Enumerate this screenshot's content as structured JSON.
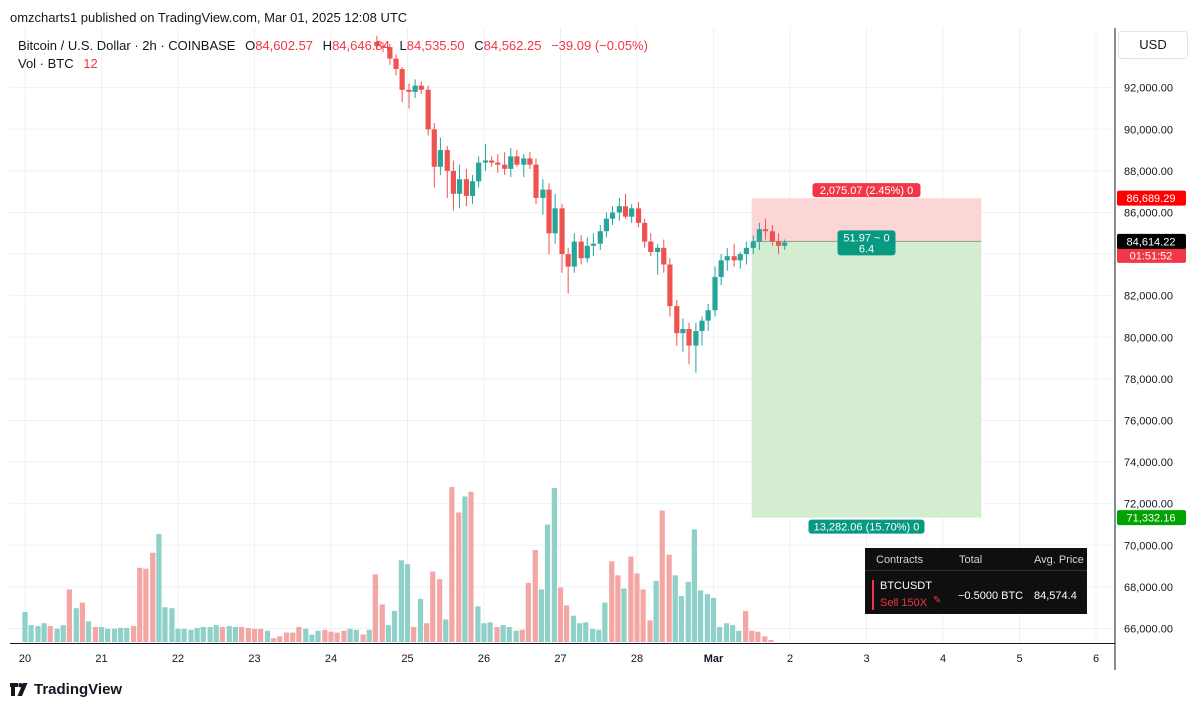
{
  "header": {
    "published": "omzcharts1 published on TradingView.com, Mar 01, 2025 12:08 UTC"
  },
  "legend": {
    "symbol": "Bitcoin / U.S. Dollar · 2h · COINBASE",
    "o_label": "O",
    "o_value": "84,602.57",
    "h_label": "H",
    "h_value": "84,646.84",
    "l_label": "L",
    "l_value": "84,535.50",
    "c_label": "C",
    "c_value": "84,562.25",
    "change": "−39.09 (−0.05%)",
    "vol_label": "Vol · BTC",
    "vol_value": "12"
  },
  "currency_button": "USD",
  "price_axis_labels": [
    "92,000.00",
    "90,000.00",
    "88,000.00",
    "86,000.00",
    "84,000.00",
    "82,000.00",
    "80,000.00",
    "78,000.00",
    "76,000.00",
    "74,000.00",
    "72,000.00",
    "70,000.00",
    "68,000.00",
    "66,000.00"
  ],
  "price_axis_values": [
    92000,
    90000,
    88000,
    86000,
    84000,
    82000,
    80000,
    78000,
    76000,
    74000,
    72000,
    70000,
    68000,
    66000
  ],
  "time_axis_labels": [
    "20",
    "21",
    "22",
    "23",
    "24",
    "25",
    "26",
    "27",
    "28",
    "Mar",
    "2",
    "3",
    "4",
    "5",
    "6"
  ],
  "price_markers": {
    "stop": {
      "label": "86,689.29",
      "value": 86689.29,
      "color": "#ff0000"
    },
    "current": {
      "label": "84,614.22",
      "value": 84614.22,
      "color": "#000000"
    },
    "last": {
      "label": "84,562.25",
      "countdown": "01:51:52",
      "value": 84562.25,
      "color": "#f23645"
    },
    "target": {
      "label": "71,332.16",
      "value": 71332.16,
      "color": "#00a300"
    }
  },
  "position_tool": {
    "stop_box_label": "2,075.07 (2.45%) 0",
    "center_label_line1": "51.97 ~ 0",
    "center_label_line2": "6.4",
    "target_box_label": "13,282.06 (15.70%) 0",
    "entry": 84614.22,
    "stop": 86689.29,
    "target": 71332.16,
    "start_time": 9.5,
    "end_time": 12.5,
    "stop_color": "#fcd6d6",
    "target_color": "#d4edd0"
  },
  "position_panel": {
    "col_contracts": "Contracts",
    "col_total": "Total",
    "col_avg_price": "Avg. Price",
    "symbol": "BTCUSDT",
    "side": "Sell 150X",
    "total": "−0.5000 BTC",
    "avg_price": "84,574.4"
  },
  "branding": "TradingView",
  "colors": {
    "up": "#26a69a",
    "down": "#ef5350",
    "up_vol": "#8fd1c9",
    "down_vol": "#f4a6a4",
    "grid": "#eef0f3"
  },
  "chart_data": {
    "type": "candlestick",
    "title": "Bitcoin / U.S. Dollar · 2h · COINBASE",
    "x_unit": "days (0 = Feb 20)",
    "ylim": [
      65000,
      94000
    ],
    "grid": true,
    "candles": [
      {
        "t": 4.6,
        "o": 94200,
        "h": 94500,
        "l": 93800,
        "c": 94000
      },
      {
        "t": 4.68,
        "o": 94000,
        "h": 94200,
        "l": 93700,
        "c": 93950
      },
      {
        "t": 4.77,
        "o": 93950,
        "h": 94100,
        "l": 93100,
        "c": 93400
      },
      {
        "t": 4.85,
        "o": 93400,
        "h": 93600,
        "l": 92600,
        "c": 92900
      },
      {
        "t": 4.93,
        "o": 92900,
        "h": 93000,
        "l": 91300,
        "c": 91900
      },
      {
        "t": 5.02,
        "o": 91900,
        "h": 92200,
        "l": 91000,
        "c": 91800
      },
      {
        "t": 5.1,
        "o": 91800,
        "h": 92400,
        "l": 91500,
        "c": 92100
      },
      {
        "t": 5.18,
        "o": 92100,
        "h": 92300,
        "l": 91700,
        "c": 91900
      },
      {
        "t": 5.27,
        "o": 91900,
        "h": 92100,
        "l": 89700,
        "c": 90000
      },
      {
        "t": 5.35,
        "o": 90000,
        "h": 90300,
        "l": 87200,
        "c": 88200
      },
      {
        "t": 5.43,
        "o": 88200,
        "h": 89600,
        "l": 87800,
        "c": 89000
      },
      {
        "t": 5.52,
        "o": 89000,
        "h": 89200,
        "l": 86700,
        "c": 88000
      },
      {
        "t": 5.6,
        "o": 88000,
        "h": 88500,
        "l": 86100,
        "c": 86900
      },
      {
        "t": 5.68,
        "o": 86900,
        "h": 88300,
        "l": 86200,
        "c": 87600
      },
      {
        "t": 5.77,
        "o": 87600,
        "h": 88100,
        "l": 86300,
        "c": 86800
      },
      {
        "t": 5.85,
        "o": 86800,
        "h": 87800,
        "l": 86400,
        "c": 87500
      },
      {
        "t": 5.93,
        "o": 87500,
        "h": 88700,
        "l": 87200,
        "c": 88400
      },
      {
        "t": 6.02,
        "o": 88400,
        "h": 89300,
        "l": 88000,
        "c": 88500
      },
      {
        "t": 6.1,
        "o": 88500,
        "h": 88700,
        "l": 88200,
        "c": 88400
      },
      {
        "t": 6.18,
        "o": 88400,
        "h": 88800,
        "l": 87900,
        "c": 88300
      },
      {
        "t": 6.27,
        "o": 88300,
        "h": 88900,
        "l": 87800,
        "c": 88100
      },
      {
        "t": 6.35,
        "o": 88100,
        "h": 89100,
        "l": 87700,
        "c": 88700
      },
      {
        "t": 6.43,
        "o": 88700,
        "h": 89000,
        "l": 88200,
        "c": 88300
      },
      {
        "t": 6.52,
        "o": 88300,
        "h": 88800,
        "l": 87700,
        "c": 88600
      },
      {
        "t": 6.6,
        "o": 88600,
        "h": 88900,
        "l": 88100,
        "c": 88300
      },
      {
        "t": 6.68,
        "o": 88300,
        "h": 88600,
        "l": 86400,
        "c": 86700
      },
      {
        "t": 6.77,
        "o": 86700,
        "h": 87600,
        "l": 85900,
        "c": 87100
      },
      {
        "t": 6.85,
        "o": 87100,
        "h": 87400,
        "l": 84000,
        "c": 85000
      },
      {
        "t": 6.93,
        "o": 85000,
        "h": 86900,
        "l": 84500,
        "c": 86200
      },
      {
        "t": 7.02,
        "o": 86200,
        "h": 86400,
        "l": 83100,
        "c": 84000
      },
      {
        "t": 7.1,
        "o": 84000,
        "h": 84300,
        "l": 82100,
        "c": 83400
      },
      {
        "t": 7.18,
        "o": 83400,
        "h": 85000,
        "l": 83100,
        "c": 84600
      },
      {
        "t": 7.27,
        "o": 84600,
        "h": 84900,
        "l": 83500,
        "c": 83800
      },
      {
        "t": 7.35,
        "o": 83800,
        "h": 84800,
        "l": 83600,
        "c": 84400
      },
      {
        "t": 7.43,
        "o": 84400,
        "h": 85000,
        "l": 83900,
        "c": 84500
      },
      {
        "t": 7.52,
        "o": 84500,
        "h": 85400,
        "l": 84200,
        "c": 85100
      },
      {
        "t": 7.6,
        "o": 85100,
        "h": 86000,
        "l": 84800,
        "c": 85700
      },
      {
        "t": 7.68,
        "o": 85700,
        "h": 86300,
        "l": 85400,
        "c": 86000
      },
      {
        "t": 7.77,
        "o": 86000,
        "h": 86700,
        "l": 85600,
        "c": 86300
      },
      {
        "t": 7.85,
        "o": 86300,
        "h": 86900,
        "l": 85700,
        "c": 85800
      },
      {
        "t": 7.93,
        "o": 85800,
        "h": 86400,
        "l": 85500,
        "c": 86200
      },
      {
        "t": 8.02,
        "o": 86200,
        "h": 86500,
        "l": 85300,
        "c": 85500
      },
      {
        "t": 8.1,
        "o": 85500,
        "h": 85700,
        "l": 84300,
        "c": 84600
      },
      {
        "t": 8.18,
        "o": 84600,
        "h": 85000,
        "l": 83900,
        "c": 84100
      },
      {
        "t": 8.27,
        "o": 84100,
        "h": 84500,
        "l": 83000,
        "c": 84300
      },
      {
        "t": 8.35,
        "o": 84300,
        "h": 84700,
        "l": 83100,
        "c": 83500
      },
      {
        "t": 8.43,
        "o": 83500,
        "h": 83800,
        "l": 81000,
        "c": 81500
      },
      {
        "t": 8.52,
        "o": 81500,
        "h": 81800,
        "l": 79600,
        "c": 80200
      },
      {
        "t": 8.6,
        "o": 80200,
        "h": 80900,
        "l": 79300,
        "c": 80400
      },
      {
        "t": 8.68,
        "o": 80400,
        "h": 80700,
        "l": 78700,
        "c": 79600
      },
      {
        "t": 8.77,
        "o": 79600,
        "h": 80700,
        "l": 78300,
        "c": 80300
      },
      {
        "t": 8.85,
        "o": 80300,
        "h": 81000,
        "l": 79600,
        "c": 80800
      },
      {
        "t": 8.93,
        "o": 80800,
        "h": 81600,
        "l": 80300,
        "c": 81300
      },
      {
        "t": 9.02,
        "o": 81300,
        "h": 83400,
        "l": 81000,
        "c": 82900
      },
      {
        "t": 9.1,
        "o": 82900,
        "h": 84000,
        "l": 82500,
        "c": 83700
      },
      {
        "t": 9.18,
        "o": 83700,
        "h": 84300,
        "l": 83200,
        "c": 83900
      },
      {
        "t": 9.27,
        "o": 83900,
        "h": 84500,
        "l": 83400,
        "c": 83700
      },
      {
        "t": 9.35,
        "o": 83700,
        "h": 84100,
        "l": 83300,
        "c": 84000
      },
      {
        "t": 9.43,
        "o": 84000,
        "h": 84600,
        "l": 83500,
        "c": 84300
      },
      {
        "t": 9.52,
        "o": 84300,
        "h": 84900,
        "l": 84000,
        "c": 84600
      },
      {
        "t": 9.6,
        "o": 84600,
        "h": 85500,
        "l": 84200,
        "c": 85200
      },
      {
        "t": 9.68,
        "o": 85200,
        "h": 85700,
        "l": 84700,
        "c": 85100
      },
      {
        "t": 9.77,
        "o": 85100,
        "h": 85400,
        "l": 84400,
        "c": 84600
      },
      {
        "t": 9.85,
        "o": 84600,
        "h": 85000,
        "l": 84000,
        "c": 84400
      },
      {
        "t": 9.93,
        "o": 84400,
        "h": 84700,
        "l": 84200,
        "c": 84560
      }
    ],
    "volume_unit": "BTC",
    "volume_ylim": [
      0,
      1100
    ],
    "volumes": [
      {
        "t": 0.0,
        "v": 320,
        "d": "up"
      },
      {
        "t": 0.08,
        "v": 180,
        "d": "up"
      },
      {
        "t": 0.17,
        "v": 170,
        "d": "up"
      },
      {
        "t": 0.25,
        "v": 200,
        "d": "up"
      },
      {
        "t": 0.33,
        "v": 170,
        "d": "down"
      },
      {
        "t": 0.42,
        "v": 140,
        "d": "up"
      },
      {
        "t": 0.5,
        "v": 180,
        "d": "up"
      },
      {
        "t": 0.58,
        "v": 560,
        "d": "down"
      },
      {
        "t": 0.67,
        "v": 360,
        "d": "up"
      },
      {
        "t": 0.75,
        "v": 420,
        "d": "down"
      },
      {
        "t": 0.83,
        "v": 220,
        "d": "up"
      },
      {
        "t": 0.92,
        "v": 160,
        "d": "down"
      },
      {
        "t": 1.0,
        "v": 160,
        "d": "up"
      },
      {
        "t": 1.08,
        "v": 140,
        "d": "up"
      },
      {
        "t": 1.17,
        "v": 140,
        "d": "up"
      },
      {
        "t": 1.25,
        "v": 150,
        "d": "up"
      },
      {
        "t": 1.33,
        "v": 150,
        "d": "up"
      },
      {
        "t": 1.42,
        "v": 170,
        "d": "down"
      },
      {
        "t": 1.5,
        "v": 790,
        "d": "down"
      },
      {
        "t": 1.58,
        "v": 780,
        "d": "down"
      },
      {
        "t": 1.67,
        "v": 950,
        "d": "down"
      },
      {
        "t": 1.75,
        "v": 1150,
        "d": "up"
      },
      {
        "t": 1.83,
        "v": 370,
        "d": "up"
      },
      {
        "t": 1.92,
        "v": 360,
        "d": "up"
      },
      {
        "t": 2.0,
        "v": 140,
        "d": "up"
      },
      {
        "t": 2.08,
        "v": 140,
        "d": "up"
      },
      {
        "t": 2.17,
        "v": 130,
        "d": "up"
      },
      {
        "t": 2.25,
        "v": 150,
        "d": "up"
      },
      {
        "t": 2.33,
        "v": 160,
        "d": "up"
      },
      {
        "t": 2.42,
        "v": 160,
        "d": "up"
      },
      {
        "t": 2.5,
        "v": 180,
        "d": "up"
      },
      {
        "t": 2.58,
        "v": 160,
        "d": "down"
      },
      {
        "t": 2.67,
        "v": 170,
        "d": "up"
      },
      {
        "t": 2.75,
        "v": 160,
        "d": "up"
      },
      {
        "t": 2.83,
        "v": 160,
        "d": "down"
      },
      {
        "t": 2.92,
        "v": 150,
        "d": "down"
      },
      {
        "t": 3.0,
        "v": 140,
        "d": "down"
      },
      {
        "t": 3.08,
        "v": 140,
        "d": "down"
      },
      {
        "t": 3.17,
        "v": 120,
        "d": "up"
      },
      {
        "t": 3.25,
        "v": 40,
        "d": "down"
      },
      {
        "t": 3.33,
        "v": 60,
        "d": "down"
      },
      {
        "t": 3.42,
        "v": 100,
        "d": "down"
      },
      {
        "t": 3.5,
        "v": 100,
        "d": "down"
      },
      {
        "t": 3.58,
        "v": 160,
        "d": "down"
      },
      {
        "t": 3.67,
        "v": 140,
        "d": "up"
      },
      {
        "t": 3.75,
        "v": 80,
        "d": "up"
      },
      {
        "t": 3.83,
        "v": 120,
        "d": "up"
      },
      {
        "t": 3.92,
        "v": 130,
        "d": "down"
      },
      {
        "t": 4.0,
        "v": 110,
        "d": "down"
      },
      {
        "t": 4.08,
        "v": 100,
        "d": "down"
      },
      {
        "t": 4.17,
        "v": 120,
        "d": "down"
      },
      {
        "t": 4.25,
        "v": 140,
        "d": "up"
      },
      {
        "t": 4.33,
        "v": 130,
        "d": "up"
      },
      {
        "t": 4.42,
        "v": 80,
        "d": "down"
      },
      {
        "t": 4.5,
        "v": 130,
        "d": "up"
      },
      {
        "t": 4.58,
        "v": 720,
        "d": "down"
      },
      {
        "t": 4.67,
        "v": 400,
        "d": "down"
      },
      {
        "t": 4.75,
        "v": 180,
        "d": "up"
      },
      {
        "t": 4.83,
        "v": 330,
        "d": "up"
      },
      {
        "t": 4.92,
        "v": 870,
        "d": "up"
      },
      {
        "t": 5.0,
        "v": 830,
        "d": "up"
      },
      {
        "t": 5.08,
        "v": 160,
        "d": "down"
      },
      {
        "t": 5.17,
        "v": 460,
        "d": "up"
      },
      {
        "t": 5.25,
        "v": 200,
        "d": "down"
      },
      {
        "t": 5.33,
        "v": 750,
        "d": "down"
      },
      {
        "t": 5.42,
        "v": 670,
        "d": "down"
      },
      {
        "t": 5.5,
        "v": 240,
        "d": "up"
      },
      {
        "t": 5.58,
        "v": 1650,
        "d": "down"
      },
      {
        "t": 5.67,
        "v": 1380,
        "d": "down"
      },
      {
        "t": 5.75,
        "v": 1550,
        "d": "up"
      },
      {
        "t": 5.83,
        "v": 1600,
        "d": "down"
      },
      {
        "t": 5.92,
        "v": 380,
        "d": "up"
      },
      {
        "t": 6.0,
        "v": 200,
        "d": "up"
      },
      {
        "t": 6.08,
        "v": 210,
        "d": "up"
      },
      {
        "t": 6.17,
        "v": 160,
        "d": "down"
      },
      {
        "t": 6.25,
        "v": 180,
        "d": "up"
      },
      {
        "t": 6.33,
        "v": 160,
        "d": "up"
      },
      {
        "t": 6.42,
        "v": 120,
        "d": "up"
      },
      {
        "t": 6.5,
        "v": 130,
        "d": "down"
      },
      {
        "t": 6.58,
        "v": 630,
        "d": "down"
      },
      {
        "t": 6.67,
        "v": 980,
        "d": "down"
      },
      {
        "t": 6.75,
        "v": 560,
        "d": "up"
      },
      {
        "t": 6.83,
        "v": 1250,
        "d": "up"
      },
      {
        "t": 6.92,
        "v": 1640,
        "d": "up"
      },
      {
        "t": 7.0,
        "v": 580,
        "d": "down"
      },
      {
        "t": 7.08,
        "v": 390,
        "d": "down"
      },
      {
        "t": 7.17,
        "v": 280,
        "d": "up"
      },
      {
        "t": 7.25,
        "v": 200,
        "d": "up"
      },
      {
        "t": 7.33,
        "v": 210,
        "d": "up"
      },
      {
        "t": 7.42,
        "v": 140,
        "d": "up"
      },
      {
        "t": 7.5,
        "v": 130,
        "d": "up"
      },
      {
        "t": 7.58,
        "v": 420,
        "d": "up"
      },
      {
        "t": 7.67,
        "v": 860,
        "d": "down"
      },
      {
        "t": 7.75,
        "v": 710,
        "d": "down"
      },
      {
        "t": 7.83,
        "v": 570,
        "d": "up"
      },
      {
        "t": 7.92,
        "v": 910,
        "d": "down"
      },
      {
        "t": 8.0,
        "v": 730,
        "d": "down"
      },
      {
        "t": 8.08,
        "v": 560,
        "d": "down"
      },
      {
        "t": 8.17,
        "v": 230,
        "d": "down"
      },
      {
        "t": 8.25,
        "v": 650,
        "d": "up"
      },
      {
        "t": 8.33,
        "v": 1400,
        "d": "down"
      },
      {
        "t": 8.42,
        "v": 930,
        "d": "down"
      },
      {
        "t": 8.5,
        "v": 710,
        "d": "up"
      },
      {
        "t": 8.58,
        "v": 490,
        "d": "up"
      },
      {
        "t": 8.67,
        "v": 640,
        "d": "up"
      },
      {
        "t": 8.75,
        "v": 1200,
        "d": "up"
      },
      {
        "t": 8.83,
        "v": 550,
        "d": "up"
      },
      {
        "t": 8.92,
        "v": 510,
        "d": "up"
      },
      {
        "t": 9.0,
        "v": 470,
        "d": "up"
      },
      {
        "t": 9.08,
        "v": 160,
        "d": "up"
      },
      {
        "t": 9.17,
        "v": 200,
        "d": "up"
      },
      {
        "t": 9.25,
        "v": 180,
        "d": "up"
      },
      {
        "t": 9.33,
        "v": 120,
        "d": "up"
      },
      {
        "t": 9.42,
        "v": 330,
        "d": "down"
      },
      {
        "t": 9.5,
        "v": 120,
        "d": "down"
      },
      {
        "t": 9.58,
        "v": 110,
        "d": "down"
      },
      {
        "t": 9.67,
        "v": 60,
        "d": "down"
      },
      {
        "t": 9.75,
        "v": 20,
        "d": "down"
      }
    ]
  }
}
